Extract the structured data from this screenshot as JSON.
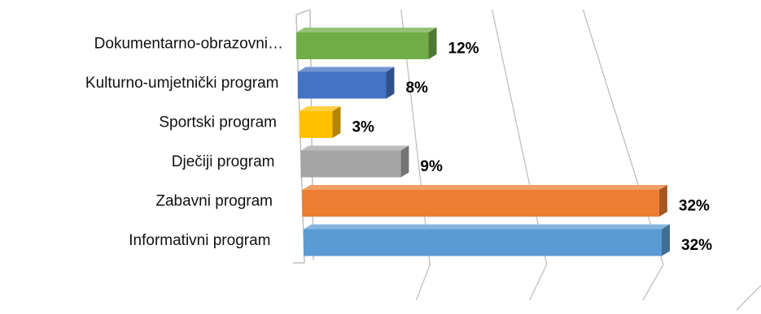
{
  "chart_data": {
    "type": "bar",
    "orientation": "horizontal",
    "style": "3d",
    "categories": [
      "Dokumentarno-obrazovni…",
      "Kulturno-umjetnički program",
      "Sportski program",
      "Dječiji program",
      "Zabavni program",
      "Informativni program"
    ],
    "values": [
      12,
      8,
      3,
      9,
      32,
      32
    ],
    "value_labels": [
      "12%",
      "8%",
      "3%",
      "9%",
      "32%",
      "32%"
    ],
    "colors": [
      "#70AD47",
      "#4472C4",
      "#FFC000",
      "#A5A5A5",
      "#ED7D31",
      "#5B9BD5"
    ],
    "xlim": [
      0,
      32
    ],
    "grid": true,
    "legend": "none",
    "title": "",
    "xlabel": "",
    "ylabel": ""
  }
}
